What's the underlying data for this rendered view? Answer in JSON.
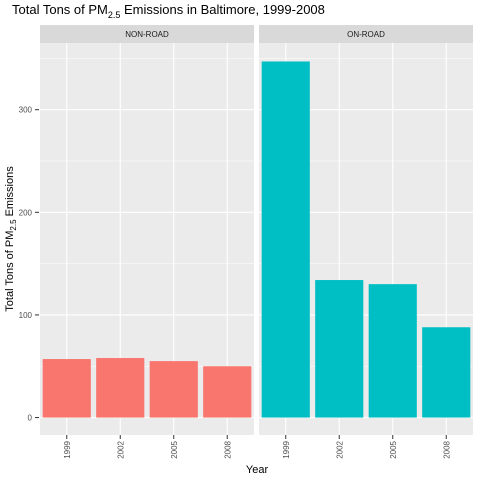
{
  "chart_data": {
    "type": "bar",
    "title_main": "Total Tons of PM",
    "title_sub": "2.5",
    "title_rest": " Emissions in Baltimore, 1999-2008",
    "xlabel": "Year",
    "ylabel_main": "Total Tons of PM",
    "ylabel_sub": "2.5",
    "ylabel_rest": " Emissions",
    "ylim": [
      -17,
      365
    ],
    "y_ticks": [
      0,
      100,
      200,
      300
    ],
    "categories": [
      "1999",
      "2002",
      "2005",
      "2008"
    ],
    "grid": true,
    "facets": [
      {
        "name": "NON-ROAD",
        "color": "#F8766D",
        "values": [
          57.0,
          58.0,
          55.0,
          50.0
        ]
      },
      {
        "name": "ON-ROAD",
        "color": "#00BFC4",
        "values": [
          347.0,
          134.0,
          130.0,
          88.0
        ]
      }
    ]
  }
}
